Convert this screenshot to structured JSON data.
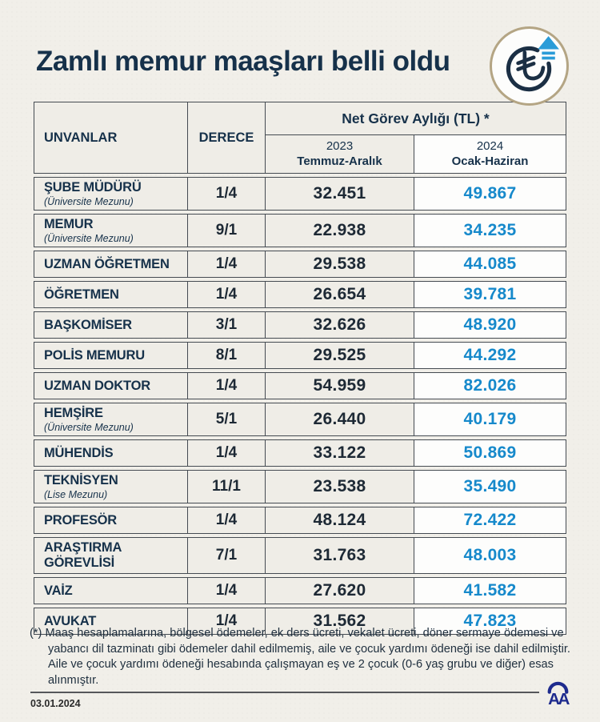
{
  "header": {
    "title": "Zamlı memur maaşları belli oldu"
  },
  "icon": {
    "name": "lira-increase-icon",
    "currency_symbol": "₺"
  },
  "table": {
    "header": {
      "unvanlar": "UNVANLAR",
      "derece": "DERECE",
      "group": "Net Görev Aylığı (TL) *",
      "col_2023_year": "2023",
      "col_2023_range": "Temmuz-Aralık",
      "col_2024_year": "2024",
      "col_2024_range": "Ocak-Haziran"
    },
    "rows": [
      {
        "title": "ŞUBE MÜDÜRÜ",
        "subtitle": "(Üniversite Mezunu)",
        "derece": "1/4",
        "salary_2023": "32.451",
        "salary_2024": "49.867"
      },
      {
        "title": "MEMUR",
        "subtitle": "(Üniversite Mezunu)",
        "derece": "9/1",
        "salary_2023": "22.938",
        "salary_2024": "34.235"
      },
      {
        "title": "UZMAN ÖĞRETMEN",
        "subtitle": "",
        "derece": "1/4",
        "salary_2023": "29.538",
        "salary_2024": "44.085"
      },
      {
        "title": "ÖĞRETMEN",
        "subtitle": "",
        "derece": "1/4",
        "salary_2023": "26.654",
        "salary_2024": "39.781"
      },
      {
        "title": "BAŞKOMİSER",
        "subtitle": "",
        "derece": "3/1",
        "salary_2023": "32.626",
        "salary_2024": "48.920"
      },
      {
        "title": "POLİS MEMURU",
        "subtitle": "",
        "derece": "8/1",
        "salary_2023": "29.525",
        "salary_2024": "44.292"
      },
      {
        "title": "UZMAN DOKTOR",
        "subtitle": "",
        "derece": "1/4",
        "salary_2023": "54.959",
        "salary_2024": "82.026"
      },
      {
        "title": "HEMŞİRE",
        "subtitle": "(Üniversite Mezunu)",
        "derece": "5/1",
        "salary_2023": "26.440",
        "salary_2024": "40.179"
      },
      {
        "title": "MÜHENDİS",
        "subtitle": "",
        "derece": "1/4",
        "salary_2023": "33.122",
        "salary_2024": "50.869"
      },
      {
        "title": "TEKNİSYEN",
        "subtitle": "(Lise Mezunu)",
        "derece": "11/1",
        "salary_2023": "23.538",
        "salary_2024": "35.490"
      },
      {
        "title": "PROFESÖR",
        "subtitle": "",
        "derece": "1/4",
        "salary_2023": "48.124",
        "salary_2024": "72.422"
      },
      {
        "title": "ARAŞTIRMA GÖREVLİSİ",
        "subtitle": "",
        "derece": "7/1",
        "salary_2023": "31.763",
        "salary_2024": "48.003"
      },
      {
        "title": "VAİZ",
        "subtitle": "",
        "derece": "1/4",
        "salary_2023": "27.620",
        "salary_2024": "41.582"
      },
      {
        "title": "AVUKAT",
        "subtitle": "",
        "derece": "1/4",
        "salary_2023": "31.562",
        "salary_2024": "47.823"
      }
    ]
  },
  "footnote": {
    "marker": "(*)",
    "text": "Maaş hesaplamalarına, bölgesel ödemeler, ek ders ücreti, vekalet ücreti, döner sermaye ödemesi ve yabancı dil tazminatı gibi ödemeler dahil edilmemiş, aile ve çocuk yardımı ödeneği ise dahil edilmiştir. Aile ve çocuk yardımı ödeneği hesabında çalışmayan eş ve 2 çocuk (0-6 yaş grubu ve diğer) esas alınmıştır."
  },
  "footer": {
    "date": "03.01.2024",
    "agency_logo": "AA"
  },
  "colors": {
    "background": "#f1efe9",
    "navy_text": "#16314a",
    "value_2023": "#1d2935",
    "value_2024": "#1689cb",
    "arrow_blue": "#2b9cd8",
    "table_border": "#454b52",
    "badge_ring": "#b4a584",
    "white_column": "#fdfdfc",
    "aa_logo_blue": "#1e2b8e"
  },
  "chart_data": {
    "type": "table",
    "title": "Zamlı memur maaşları belli oldu",
    "columns": [
      "UNVANLAR",
      "DERECE",
      "Net Görev Aylığı (TL) 2023 Temmuz-Aralık",
      "Net Görev Aylığı (TL) 2024 Ocak-Haziran"
    ],
    "rows": [
      [
        "ŞUBE MÜDÜRÜ (Üniversite Mezunu)",
        "1/4",
        32451,
        49867
      ],
      [
        "MEMUR (Üniversite Mezunu)",
        "9/1",
        22938,
        34235
      ],
      [
        "UZMAN ÖĞRETMEN",
        "1/4",
        29538,
        44085
      ],
      [
        "ÖĞRETMEN",
        "1/4",
        26654,
        39781
      ],
      [
        "BAŞKOMİSER",
        "3/1",
        32626,
        48920
      ],
      [
        "POLİS MEMURU",
        "8/1",
        29525,
        44292
      ],
      [
        "UZMAN DOKTOR",
        "1/4",
        54959,
        82026
      ],
      [
        "HEMŞİRE (Üniversite Mezunu)",
        "5/1",
        26440,
        40179
      ],
      [
        "MÜHENDİS",
        "1/4",
        33122,
        50869
      ],
      [
        "TEKNİSYEN (Lise Mezunu)",
        "11/1",
        23538,
        35490
      ],
      [
        "PROFESÖR",
        "1/4",
        48124,
        72422
      ],
      [
        "ARAŞTIRMA GÖREVLİSİ",
        "7/1",
        31763,
        48003
      ],
      [
        "VAİZ",
        "1/4",
        27620,
        41582
      ],
      [
        "AVUKAT",
        "1/4",
        31562,
        47823
      ]
    ]
  }
}
